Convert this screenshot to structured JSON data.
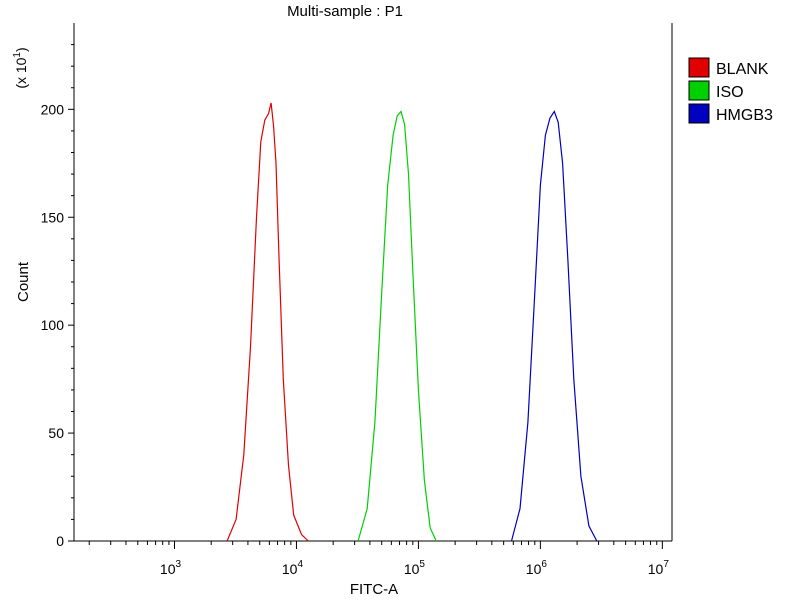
{
  "chart_data": {
    "type": "line",
    "title": "Multi-sample : P1",
    "xlabel": "FITC-A",
    "ylabel": "Count",
    "y_multiplier_label": "(x 10",
    "y_multiplier_exp": "1",
    "x_scale": "log",
    "xlim": [
      150,
      12000000
    ],
    "ylim": [
      0,
      240
    ],
    "grid": false,
    "legend_placement": "right",
    "y_ticks": [
      0,
      50,
      100,
      150,
      200
    ],
    "x_ticks": [
      {
        "value": 1000,
        "base": "10",
        "exp": "3"
      },
      {
        "value": 10000,
        "base": "10",
        "exp": "4"
      },
      {
        "value": 100000,
        "base": "10",
        "exp": "5"
      },
      {
        "value": 1000000,
        "base": "10",
        "exp": "6"
      },
      {
        "value": 10000000,
        "base": "10",
        "exp": "7"
      }
    ],
    "series": [
      {
        "name": "BLANK",
        "color": "#e00000",
        "x": [
          2700,
          3200,
          3700,
          4200,
          4700,
          5100,
          5500,
          5900,
          6200,
          6500,
          6800,
          7200,
          7800,
          8600,
          9500,
          11000,
          12500
        ],
        "y": [
          0,
          10,
          40,
          90,
          150,
          185,
          195,
          198,
          203,
          192,
          175,
          130,
          75,
          35,
          12,
          3,
          0
        ]
      },
      {
        "name": "ISO",
        "color": "#00d000",
        "x": [
          32000,
          38000,
          44000,
          50000,
          56000,
          62000,
          67000,
          72000,
          77000,
          83000,
          90000,
          100000,
          112000,
          125000,
          140000
        ],
        "y": [
          0,
          15,
          55,
          115,
          165,
          188,
          197,
          199,
          193,
          170,
          125,
          70,
          28,
          6,
          0
        ]
      },
      {
        "name": "HMGB3",
        "color": "#0000c0",
        "x": [
          580000,
          680000,
          790000,
          900000,
          1000000,
          1100000,
          1200000,
          1300000,
          1400000,
          1520000,
          1680000,
          1880000,
          2150000,
          2500000,
          2900000
        ],
        "y": [
          0,
          15,
          55,
          115,
          165,
          188,
          196,
          199,
          194,
          175,
          130,
          75,
          30,
          7,
          0
        ]
      }
    ]
  }
}
